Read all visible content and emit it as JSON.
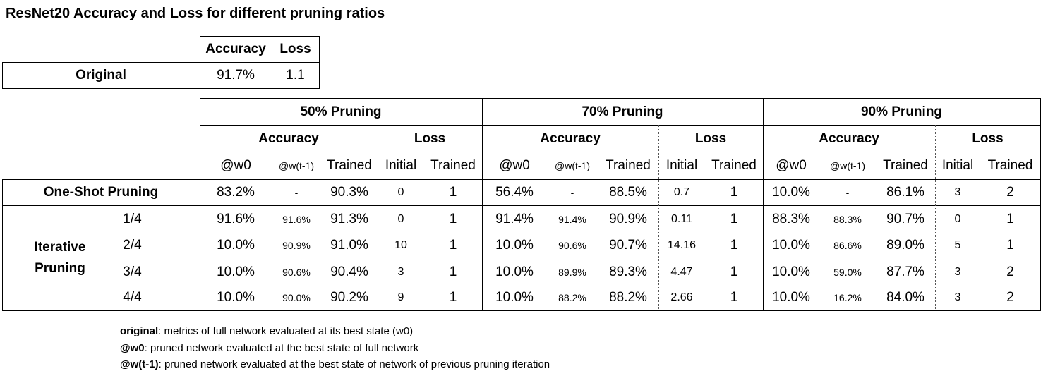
{
  "title": "ResNet20 Accuracy and Loss for different pruning ratios",
  "original_table": {
    "headers": [
      "Accuracy",
      "Loss"
    ],
    "row_label": "Original",
    "values": [
      "91.7%",
      "1.1"
    ]
  },
  "main_table": {
    "groups": [
      "50% Pruning",
      "70% Pruning",
      "90% Pruning"
    ],
    "subgroups": [
      "Accuracy",
      "Loss"
    ],
    "columns": [
      "@w0",
      "@w(t-1)",
      "Trained",
      "Initial",
      "Trained"
    ],
    "one_shot_label": "One-Shot Pruning",
    "iterative_label_line1": "Iterative",
    "iterative_label_line2": "Pruning",
    "rows": [
      {
        "label": "",
        "cells": [
          "83.2%",
          "-",
          "90.3%",
          "0",
          "1",
          "56.4%",
          "-",
          "88.5%",
          "0.7",
          "1",
          "10.0%",
          "-",
          "86.1%",
          "3",
          "2"
        ]
      },
      {
        "label": "1/4",
        "cells": [
          "91.6%",
          "91.6%",
          "91.3%",
          "0",
          "1",
          "91.4%",
          "91.4%",
          "90.9%",
          "0.11",
          "1",
          "88.3%",
          "88.3%",
          "90.7%",
          "0",
          "1"
        ]
      },
      {
        "label": "2/4",
        "cells": [
          "10.0%",
          "90.9%",
          "91.0%",
          "10",
          "1",
          "10.0%",
          "90.6%",
          "90.7%",
          "14.16",
          "1",
          "10.0%",
          "86.6%",
          "89.0%",
          "5",
          "1"
        ]
      },
      {
        "label": "3/4",
        "cells": [
          "10.0%",
          "90.6%",
          "90.4%",
          "3",
          "1",
          "10.0%",
          "89.9%",
          "89.3%",
          "4.47",
          "1",
          "10.0%",
          "59.0%",
          "87.7%",
          "3",
          "2"
        ]
      },
      {
        "label": "4/4",
        "cells": [
          "10.0%",
          "90.0%",
          "90.2%",
          "9",
          "1",
          "10.0%",
          "88.2%",
          "88.2%",
          "2.66",
          "1",
          "10.0%",
          "16.2%",
          "84.0%",
          "3",
          "2"
        ]
      }
    ]
  },
  "notes": [
    {
      "term": "original",
      "text": ": metrics of full network evaluated at its best state (w0)"
    },
    {
      "term": "@w0",
      "text": ": pruned network evaluated at the best state of full network"
    },
    {
      "term": "@w(t-1)",
      "text": ":  pruned network evaluated at the best state of network of previous pruning iteration"
    }
  ]
}
